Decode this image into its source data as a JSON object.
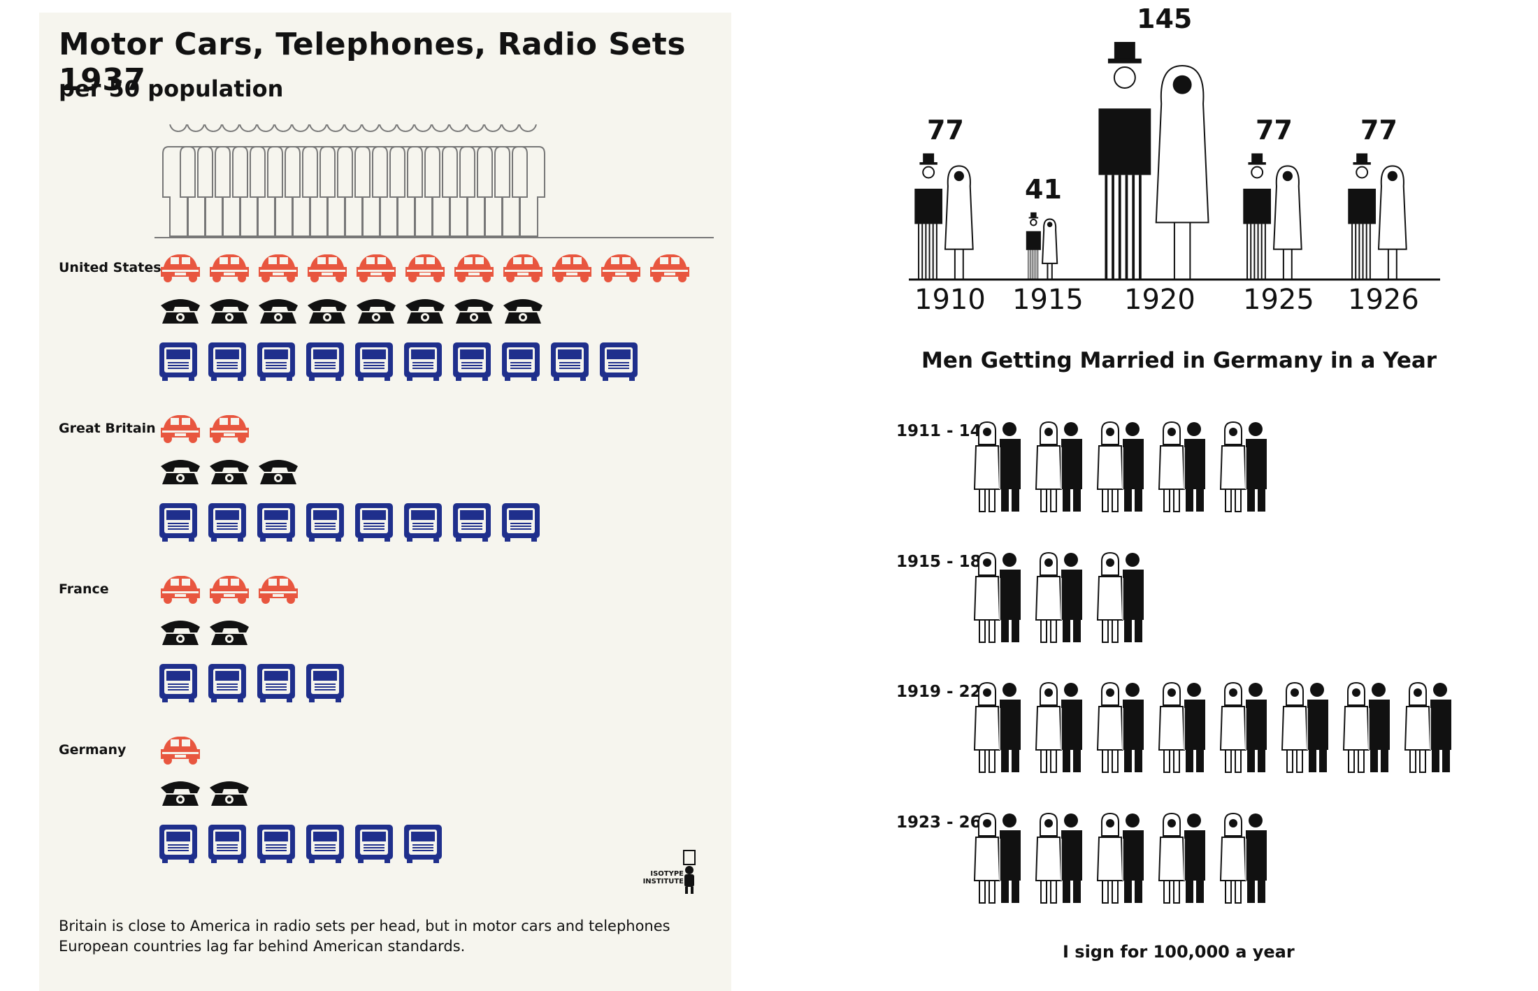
{
  "left_chart": {
    "title": "Motor Cars,  Telephones, Radio Sets 1937",
    "subtitle": "per 50 population",
    "logo_text": [
      "ISOTYPE",
      "INSTITUTE"
    ],
    "caption_lines": [
      "Britain is close to America in radio sets per head, but in motor cars and telephones",
      "European countries lag far behind American standards."
    ],
    "colors": {
      "car": "#e8563f",
      "telephone": "#111111",
      "radio": "#1f2f8c",
      "outline": "#777777"
    }
  },
  "right_chart": {
    "title": "Men Getting Married in Germany in a Year",
    "legend": "I sign for 100,000 a year",
    "colors": {
      "ink": "#111111"
    }
  },
  "chart_data": [
    {
      "type": "bar",
      "title": "Motor Cars,  Telephones, Radio Sets 1937",
      "subtitle": "per 50 population",
      "population_symbols": 50,
      "categories": [
        "United States",
        "Great Britain",
        "France",
        "Germany"
      ],
      "series": [
        {
          "name": "Motor Cars",
          "icon": "car-icon",
          "values": [
            11,
            2,
            3,
            1
          ]
        },
        {
          "name": "Telephones",
          "icon": "telephone-icon",
          "values": [
            8,
            3,
            2,
            2
          ]
        },
        {
          "name": "Radio Sets",
          "icon": "radio-icon",
          "values": [
            10,
            8,
            4,
            6
          ]
        }
      ]
    },
    {
      "type": "bar",
      "title": "Men Getting Married in Germany in a Year",
      "categories": [
        "1910",
        "1915",
        "1920",
        "1925",
        "1926"
      ],
      "values": [
        77,
        41,
        145,
        77,
        77
      ]
    },
    {
      "type": "bar",
      "title": "Men Getting Married in Germany in a Year",
      "legend": "I sign for 100,000 a year",
      "categories": [
        "1911 - 14",
        "1915 - 18",
        "1919 - 22",
        "1923 - 26"
      ],
      "values": [
        5,
        3,
        8,
        5
      ]
    }
  ]
}
